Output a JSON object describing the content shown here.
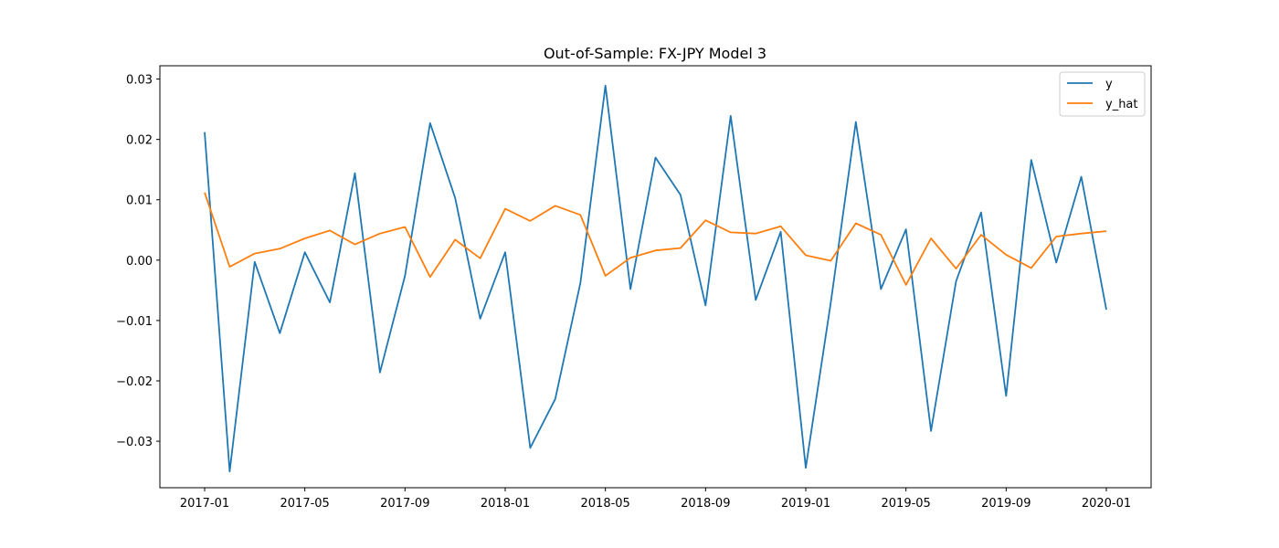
{
  "chart_data": {
    "type": "line",
    "title": "Out-of-Sample: FX-JPY Model 3",
    "xlabel": "",
    "ylabel": "",
    "x": [
      "2017-01",
      "2017-02",
      "2017-03",
      "2017-04",
      "2017-05",
      "2017-06",
      "2017-07",
      "2017-08",
      "2017-09",
      "2017-10",
      "2017-11",
      "2017-12",
      "2018-01",
      "2018-02",
      "2018-03",
      "2018-04",
      "2018-05",
      "2018-06",
      "2018-07",
      "2018-08",
      "2018-09",
      "2018-10",
      "2018-11",
      "2018-12",
      "2019-01",
      "2019-02",
      "2019-03",
      "2019-04",
      "2019-05",
      "2019-06",
      "2019-07",
      "2019-08",
      "2019-09",
      "2019-10",
      "2019-11",
      "2019-12",
      "2020-01"
    ],
    "x_tick_labels": [
      "2017-01",
      "2017-05",
      "2017-09",
      "2018-01",
      "2018-05",
      "2018-09",
      "2019-01",
      "2019-05",
      "2019-09",
      "2020-01"
    ],
    "y_ticks": [
      -0.03,
      -0.02,
      -0.01,
      0.0,
      0.01,
      0.02,
      0.03
    ],
    "y_tick_labels": [
      "−0.03",
      "−0.02",
      "−0.01",
      "0.00",
      "0.01",
      "0.02",
      "0.03"
    ],
    "ylim": [
      -0.0377,
      0.0322
    ],
    "grid": false,
    "legend_position": "top-right",
    "series": [
      {
        "name": "y",
        "color": "#1f77b4",
        "values": [
          0.0212,
          -0.035,
          -0.0003,
          -0.0121,
          0.0013,
          -0.007,
          0.0144,
          -0.0186,
          -0.0026,
          0.0227,
          0.0103,
          -0.0097,
          0.0013,
          -0.0311,
          -0.023,
          -0.0038,
          0.0289,
          -0.0048,
          0.017,
          0.0108,
          -0.0075,
          0.0239,
          -0.0066,
          0.0047,
          -0.0344,
          -0.007,
          0.0229,
          -0.0048,
          0.0051,
          -0.0283,
          -0.0035,
          0.0079,
          -0.0225,
          0.0166,
          -0.0004,
          0.0138,
          -0.0082
        ]
      },
      {
        "name": "y_hat",
        "color": "#ff7f0e",
        "values": [
          0.0112,
          -0.0011,
          0.0011,
          0.0019,
          0.0036,
          0.0049,
          0.0026,
          0.0044,
          0.0055,
          -0.0028,
          0.0034,
          0.0003,
          0.0085,
          0.0065,
          0.009,
          0.0075,
          -0.0026,
          0.0004,
          0.0016,
          0.002,
          0.0066,
          0.0046,
          0.0044,
          0.0056,
          0.0008,
          -0.0001,
          0.0061,
          0.0042,
          -0.0041,
          0.0036,
          -0.0014,
          0.0042,
          0.0009,
          -0.0013,
          0.0039,
          0.0044,
          0.0048
        ]
      }
    ]
  }
}
